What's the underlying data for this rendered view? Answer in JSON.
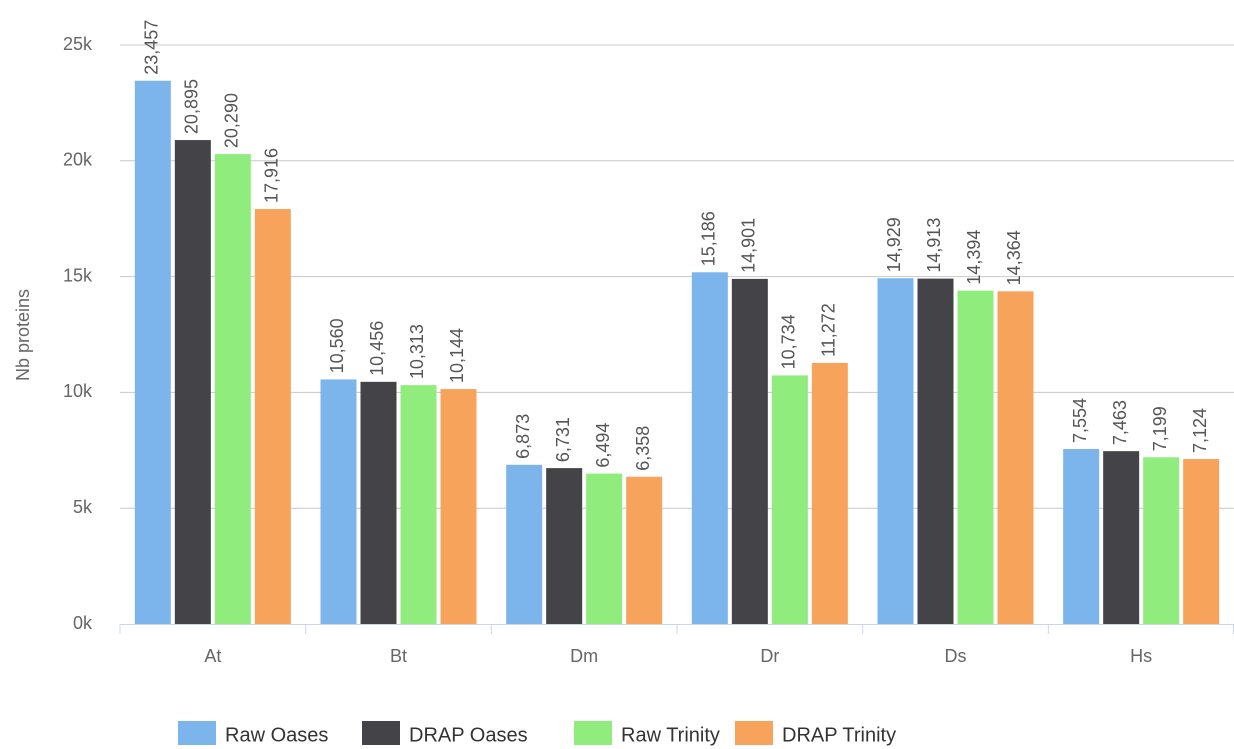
{
  "chart_data": {
    "type": "bar",
    "y_label": "Nb proteins",
    "categories": [
      "At",
      "Bt",
      "Dm",
      "Dr",
      "Ds",
      "Hs"
    ],
    "series": [
      {
        "name": "Raw Oases",
        "color": "#7cb5ec",
        "values": [
          23457,
          10560,
          6873,
          15186,
          14929,
          7554
        ],
        "value_labels": [
          "23,457",
          "10,560",
          "6,873",
          "15,186",
          "14,929",
          "7,554"
        ]
      },
      {
        "name": "DRAP Oases",
        "color": "#434348",
        "values": [
          20895,
          10456,
          6731,
          14901,
          14913,
          7463
        ],
        "value_labels": [
          "20,895",
          "10,456",
          "6,731",
          "14,901",
          "14,913",
          "7,463"
        ]
      },
      {
        "name": "Raw Trinity",
        "color": "#90ed7d",
        "values": [
          20290,
          10313,
          6494,
          10734,
          14394,
          7199
        ],
        "value_labels": [
          "20,290",
          "10,313",
          "6,494",
          "10,734",
          "14,394",
          "7,199"
        ]
      },
      {
        "name": "DRAP Trinity",
        "color": "#f7a35c",
        "values": [
          17916,
          10144,
          6358,
          11272,
          14364,
          7124
        ],
        "value_labels": [
          "17,916",
          "10,144",
          "6,358",
          "11,272",
          "14,364",
          "7,124"
        ]
      }
    ],
    "ylim": [
      0,
      25000
    ],
    "yticks": [
      {
        "value": 0,
        "label": "0k"
      },
      {
        "value": 5000,
        "label": "5k"
      },
      {
        "value": 10000,
        "label": "10k"
      },
      {
        "value": 15000,
        "label": "15k"
      },
      {
        "value": 20000,
        "label": "20k"
      },
      {
        "value": 25000,
        "label": "25k"
      }
    ],
    "grid": true,
    "legend": "bottom"
  }
}
